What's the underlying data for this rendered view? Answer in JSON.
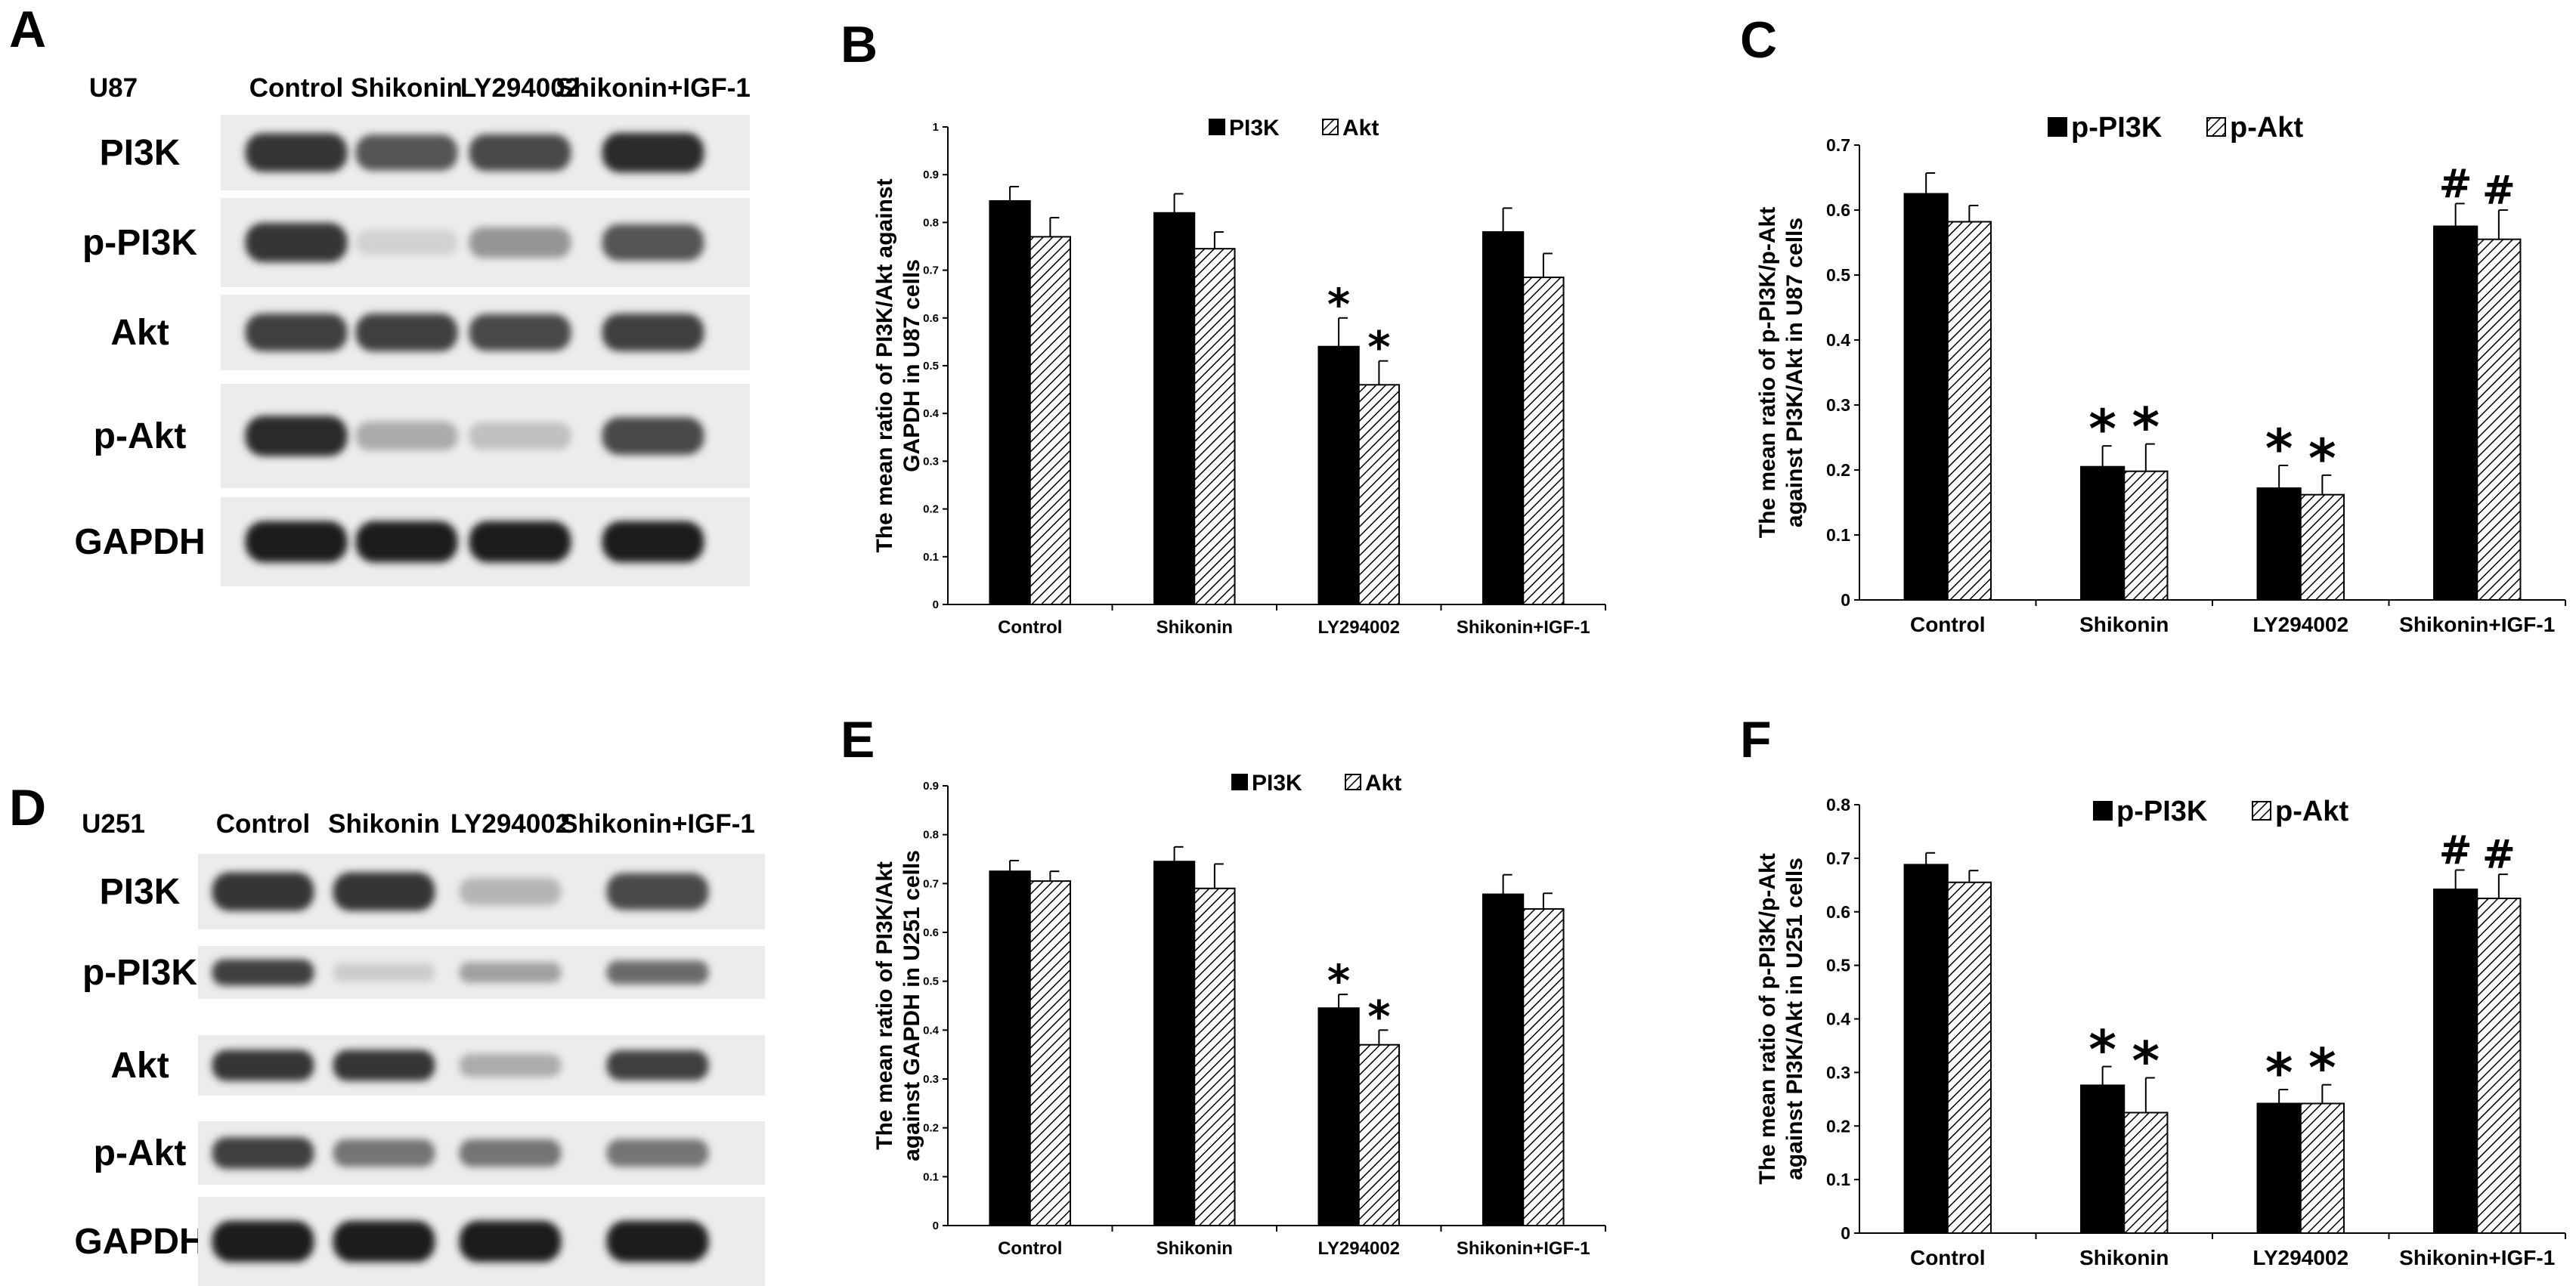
{
  "panels": {
    "A": "A",
    "B": "B",
    "C": "C",
    "D": "D",
    "E": "E",
    "F": "F"
  },
  "blots": [
    {
      "cell_line": "U87",
      "lanes": [
        "Control",
        "Shikonin",
        "LY294002",
        "Shikonin+IGF-1"
      ],
      "rows": [
        {
          "label": "PI3K",
          "intensity": [
            0.85,
            0.7,
            0.75,
            0.9
          ]
        },
        {
          "label": "p-PI3K",
          "intensity": [
            0.85,
            0.12,
            0.4,
            0.7
          ]
        },
        {
          "label": "Akt",
          "intensity": [
            0.8,
            0.8,
            0.75,
            0.8
          ]
        },
        {
          "label": "p-Akt",
          "intensity": [
            0.9,
            0.3,
            0.2,
            0.75
          ]
        },
        {
          "label": "GAPDH",
          "intensity": [
            0.95,
            0.95,
            0.95,
            0.95
          ]
        }
      ]
    },
    {
      "cell_line": "U251",
      "lanes": [
        "Control",
        "Shikonin",
        "LY294002",
        "Shikonin+IGF-1"
      ],
      "rows": [
        {
          "label": "PI3K",
          "intensity": [
            0.85,
            0.85,
            0.25,
            0.75
          ]
        },
        {
          "label": "p-PI3K",
          "intensity": [
            0.8,
            0.15,
            0.35,
            0.6
          ]
        },
        {
          "label": "Akt",
          "intensity": [
            0.85,
            0.85,
            0.3,
            0.8
          ]
        },
        {
          "label": "p-Akt",
          "intensity": [
            0.8,
            0.55,
            0.55,
            0.55
          ]
        },
        {
          "label": "GAPDH",
          "intensity": [
            0.95,
            0.95,
            0.95,
            0.95
          ]
        }
      ]
    }
  ],
  "chart_data": [
    {
      "panel": "B",
      "type": "bar",
      "title": "",
      "ylabel": [
        "The mean ratio of PI3K/Akt against",
        "GAPDH in U87 cells"
      ],
      "xlabel": "",
      "ylim": [
        0,
        1
      ],
      "ytick_step": 0.1,
      "ytick_labels": [
        "0",
        "0.1",
        "0.2",
        "0.3",
        "0.4",
        "0.5",
        "0.6",
        "0.7",
        "0.8",
        "0.9",
        "1"
      ],
      "categories": [
        "Control",
        "Shikonin",
        "LY294002",
        "Shikonin+IGF-1"
      ],
      "legend_position": "top",
      "series": [
        {
          "name": "PI3K",
          "fill": "solid",
          "values": [
            0.845,
            0.82,
            0.54,
            0.78
          ],
          "errors": [
            0.03,
            0.04,
            0.06,
            0.05
          ],
          "marks": [
            "",
            "",
            "*",
            ""
          ]
        },
        {
          "name": "Akt",
          "fill": "hatch",
          "values": [
            0.77,
            0.745,
            0.46,
            0.685
          ],
          "errors": [
            0.04,
            0.035,
            0.05,
            0.05
          ],
          "marks": [
            "",
            "",
            "*",
            ""
          ]
        }
      ]
    },
    {
      "panel": "C",
      "type": "bar",
      "title": "",
      "ylabel": [
        "The mean ratio of p-PI3K/p-Akt",
        "against PI3K/Akt in U87 cells"
      ],
      "xlabel": "",
      "ylim": [
        0,
        0.7
      ],
      "ytick_step": 0.1,
      "ytick_labels": [
        "0",
        "0.1",
        "0.2",
        "0.3",
        "0.4",
        "0.5",
        "0.6",
        "0.7"
      ],
      "categories": [
        "Control",
        "Shikonin",
        "LY294002",
        "Shikonin+IGF-1"
      ],
      "legend_position": "top",
      "series": [
        {
          "name": "p-PI3K",
          "fill": "solid",
          "values": [
            0.625,
            0.205,
            0.172,
            0.575
          ],
          "errors": [
            0.032,
            0.032,
            0.035,
            0.035
          ],
          "marks": [
            "",
            "*",
            "*",
            "#"
          ]
        },
        {
          "name": "p-Akt",
          "fill": "hatch",
          "values": [
            0.582,
            0.198,
            0.162,
            0.555
          ],
          "errors": [
            0.025,
            0.042,
            0.03,
            0.045
          ],
          "marks": [
            "",
            "*",
            "*",
            "#"
          ]
        }
      ]
    },
    {
      "panel": "E",
      "type": "bar",
      "title": "",
      "ylabel": [
        "The mean ratio of PI3K/Akt",
        "against GAPDH in U251 cells"
      ],
      "xlabel": "",
      "ylim": [
        0,
        0.9
      ],
      "ytick_step": 0.1,
      "ytick_labels": [
        "0",
        "0.1",
        "0.2",
        "0.3",
        "0.4",
        "0.5",
        "0.6",
        "0.7",
        "0.8",
        "0.9"
      ],
      "categories": [
        "Control",
        "Shikonin",
        "LY294002",
        "Shikonin+IGF-1"
      ],
      "legend_position": "top",
      "series": [
        {
          "name": "PI3K",
          "fill": "solid",
          "values": [
            0.725,
            0.745,
            0.445,
            0.678
          ],
          "errors": [
            0.022,
            0.03,
            0.028,
            0.04
          ],
          "marks": [
            "",
            "",
            "*",
            ""
          ]
        },
        {
          "name": "Akt",
          "fill": "hatch",
          "values": [
            0.705,
            0.69,
            0.37,
            0.648
          ],
          "errors": [
            0.02,
            0.05,
            0.03,
            0.032
          ],
          "marks": [
            "",
            "",
            "*",
            ""
          ]
        }
      ]
    },
    {
      "panel": "F",
      "type": "bar",
      "title": "",
      "ylabel": [
        "The mean ratio of p-PI3K/p-Akt",
        "against PI3K/Akt in U251 cells"
      ],
      "xlabel": "",
      "ylim": [
        0,
        0.8
      ],
      "ytick_step": 0.1,
      "ytick_labels": [
        "0",
        "0.1",
        "0.2",
        "0.3",
        "0.4",
        "0.5",
        "0.6",
        "0.7",
        "0.8"
      ],
      "categories": [
        "Control",
        "Shikonin",
        "LY294002",
        "Shikonin+IGF-1"
      ],
      "legend_position": "top",
      "series": [
        {
          "name": "p-PI3K",
          "fill": "solid",
          "values": [
            0.688,
            0.276,
            0.242,
            0.642
          ],
          "errors": [
            0.022,
            0.035,
            0.026,
            0.036
          ],
          "marks": [
            "",
            "*",
            "*",
            "#"
          ]
        },
        {
          "name": "p-Akt",
          "fill": "hatch",
          "values": [
            0.655,
            0.225,
            0.242,
            0.625
          ],
          "errors": [
            0.022,
            0.065,
            0.035,
            0.045
          ],
          "marks": [
            "",
            "*",
            "*",
            "#"
          ]
        }
      ]
    }
  ]
}
